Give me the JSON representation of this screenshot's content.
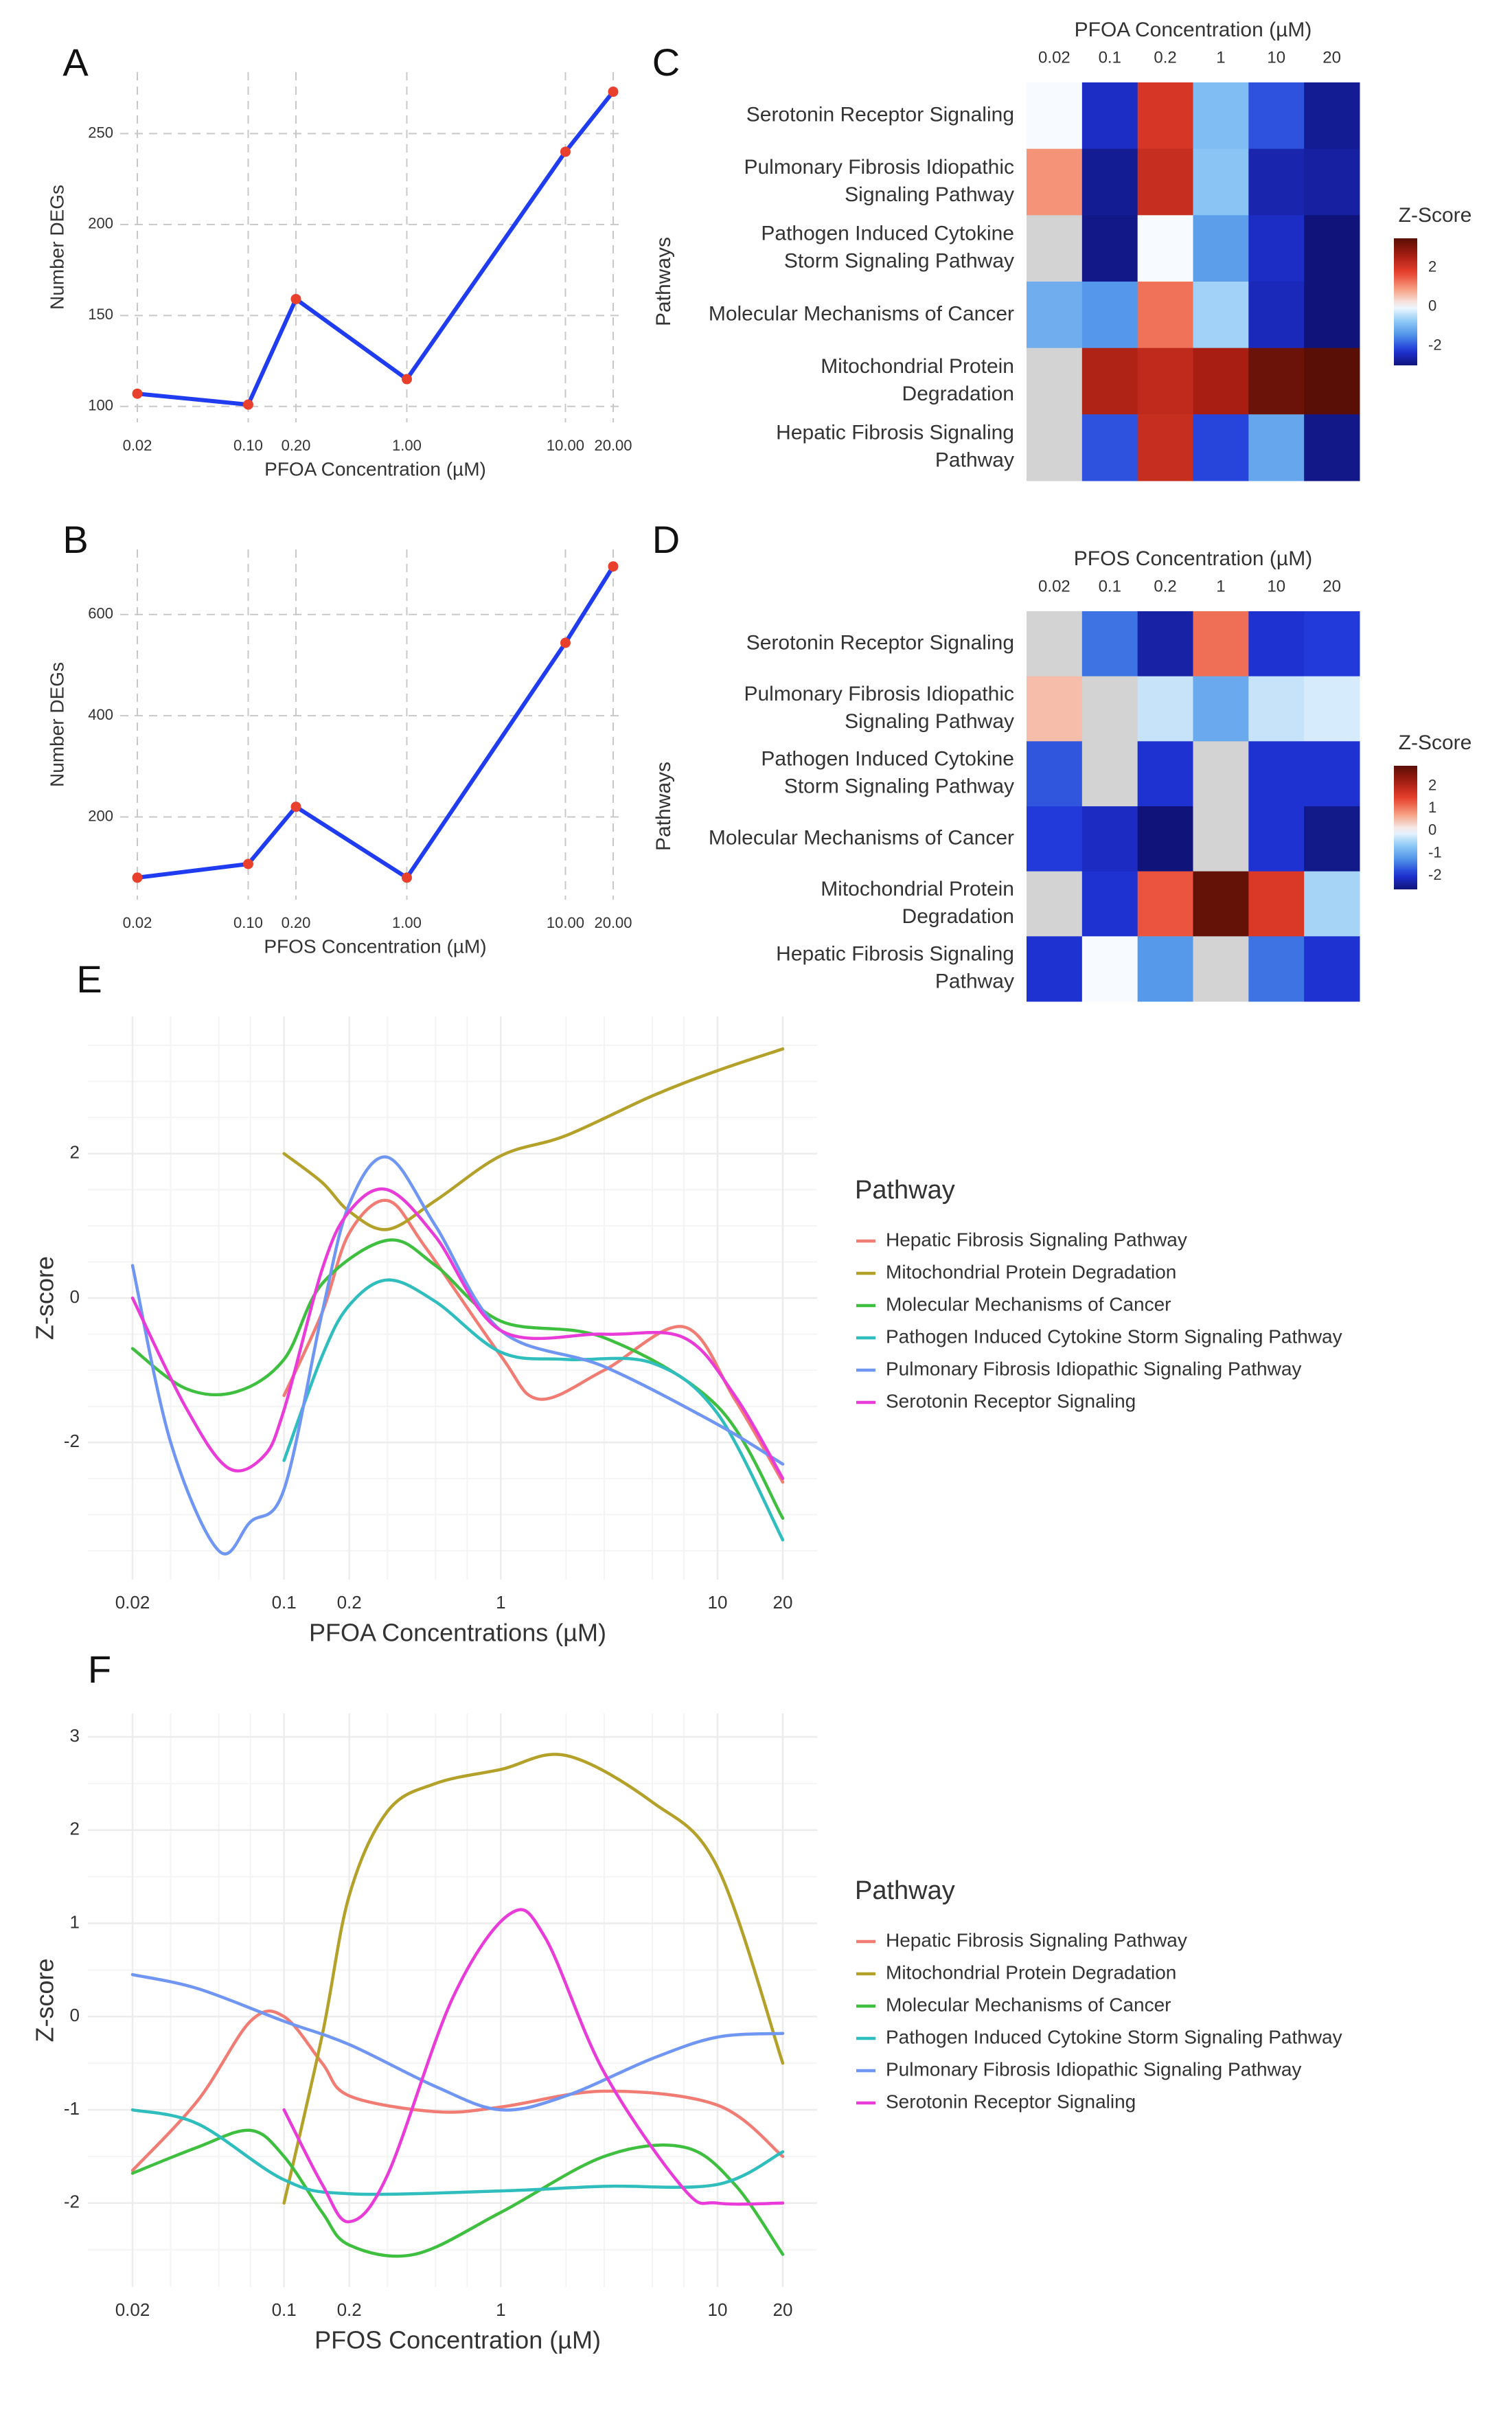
{
  "figure": {
    "panel_labels": [
      "A",
      "B",
      "C",
      "D",
      "E",
      "F"
    ],
    "colors": {
      "line_blue": "#1f3cf0",
      "point_red": "#e8402c",
      "grid_dashed": "#c8c8c8",
      "grid_light": "#ececec",
      "na_cell": "#d3d3d3",
      "text": "#333333"
    }
  },
  "chart_data": [
    {
      "panel": "A",
      "type": "line",
      "xscale": "log",
      "x": [
        0.02,
        0.1,
        0.2,
        1,
        10,
        20
      ],
      "xtick_labels": [
        "0.02",
        "0.10",
        "0.20",
        "1.00",
        "10.00",
        "20.00"
      ],
      "values": [
        107,
        101,
        159,
        115,
        240,
        273
      ],
      "xlabel": "PFOA Concentration (µM)",
      "ylabel": "Number DEGs",
      "ylim": [
        95,
        280
      ],
      "yticks": [
        100,
        150,
        200,
        250
      ]
    },
    {
      "panel": "B",
      "type": "line",
      "xscale": "log",
      "x": [
        0.02,
        0.1,
        0.2,
        1,
        10,
        20
      ],
      "xtick_labels": [
        "0.02",
        "0.10",
        "0.20",
        "1.00",
        "10.00",
        "20.00"
      ],
      "values": [
        80,
        107,
        220,
        80,
        544,
        695
      ],
      "xlabel": "PFOS Concentration (µM)",
      "ylabel": "Number DEGs",
      "ylim": [
        50,
        715
      ],
      "yticks": [
        200,
        400,
        600
      ]
    },
    {
      "panel": "C",
      "type": "heatmap",
      "title": "PFOA Concentration (µM)",
      "columns": [
        "0.02",
        "0.1",
        "0.2",
        "1",
        "10",
        "20"
      ],
      "rows": [
        "Serotonin Receptor Signaling",
        "Pulmonary Fibrosis Idiopathic Signaling Pathway",
        "Pathogen Induced Cytokine Storm Signaling Pathway",
        "Molecular Mechanisms of Cancer",
        "Mitochondrial Protein Degradation",
        "Hepatic Fibrosis Signaling Pathway"
      ],
      "row_display": [
        [
          "Serotonin Receptor Signaling"
        ],
        [
          "Pulmonary Fibrosis Idiopathic",
          "Signaling Pathway"
        ],
        [
          "Pathogen Induced Cytokine",
          "Storm Signaling Pathway"
        ],
        [
          "Molecular Mechanisms of Cancer"
        ],
        [
          "Mitochondrial Protein",
          "Degradation"
        ],
        [
          "Hepatic Fibrosis Signaling",
          "Pathway"
        ]
      ],
      "values": [
        [
          0.0,
          -2.4,
          2.0,
          -0.9,
          -2.0,
          -2.8
        ],
        [
          1.0,
          -2.8,
          2.2,
          -0.8,
          -2.6,
          -2.7
        ],
        [
          null,
          -2.9,
          0.0,
          -1.3,
          -2.4,
          -3.6
        ],
        [
          -1.1,
          -1.4,
          1.3,
          -0.6,
          -2.5,
          -3.0
        ],
        [
          null,
          2.5,
          2.3,
          2.6,
          3.3,
          3.6
        ],
        [
          null,
          -2.0,
          2.2,
          -2.1,
          -1.2,
          -2.9
        ]
      ],
      "ylabel": "Pathways",
      "legend_title": "Z-Score",
      "legend_ticks": [
        2,
        0,
        -2
      ],
      "legend_range": [
        -3,
        3.5
      ]
    },
    {
      "panel": "D",
      "type": "heatmap",
      "title": "PFOS Concentration (µM)",
      "columns": [
        "0.02",
        "0.1",
        "0.2",
        "1",
        "10",
        "20"
      ],
      "rows": [
        "Serotonin Receptor Signaling",
        "Pulmonary Fibrosis Idiopathic Signaling Pathway",
        "Pathogen Induced Cytokine Storm Signaling Pathway",
        "Molecular Mechanisms of Cancer",
        "Mitochondrial Protein Degradation",
        "Hepatic Fibrosis Signaling Pathway"
      ],
      "row_display": [
        [
          "Serotonin Receptor Signaling"
        ],
        [
          "Pulmonary Fibrosis Idiopathic",
          "Signaling Pathway"
        ],
        [
          "Pathogen Induced Cytokine",
          "Storm Signaling Pathway"
        ],
        [
          "Molecular Mechanisms of Cancer"
        ],
        [
          "Mitochondrial Protein",
          "Degradation"
        ],
        [
          "Hepatic Fibrosis Signaling",
          "Pathway"
        ]
      ],
      "values": [
        [
          null,
          -1.5,
          -2.3,
          1.1,
          -2.0,
          -1.9
        ],
        [
          0.5,
          null,
          -0.3,
          -1.0,
          -0.3,
          -0.2
        ],
        [
          -1.7,
          null,
          -2.0,
          null,
          -2.0,
          -2.0
        ],
        [
          -1.9,
          -2.1,
          -2.6,
          null,
          -2.0,
          -2.5
        ],
        [
          null,
          -2.0,
          1.3,
          2.8,
          1.6,
          -0.5
        ],
        [
          -2.0,
          0.0,
          -1.2,
          null,
          -1.5,
          -2.0
        ]
      ],
      "ylabel": "Pathways",
      "legend_title": "Z-Score",
      "legend_ticks": [
        2,
        1,
        0,
        -1,
        -2
      ],
      "legend_range": [
        -2.6,
        2.9
      ]
    },
    {
      "panel": "E",
      "type": "line",
      "xscale": "log",
      "smooth": true,
      "xticks": [
        0.02,
        0.1,
        0.2,
        1,
        10,
        20
      ],
      "xtick_labels": [
        "0.02",
        "0.1",
        "0.2",
        "1",
        "10",
        "20"
      ],
      "yticks": [
        -2,
        0,
        2
      ],
      "ylim": [
        -3.9,
        3.9
      ],
      "xlabel": "PFOA Concentrations (µM)",
      "ylabel": "Z-score",
      "legend_title": "Pathway",
      "series": [
        {
          "name": "Hepatic Fibrosis Signaling Pathway",
          "color": "#f07c73",
          "x": [
            0.1,
            0.15,
            0.2,
            0.3,
            0.45,
            1,
            1.5,
            3,
            7,
            12,
            20
          ],
          "values": [
            -1.35,
            -0.2,
            0.9,
            1.35,
            0.7,
            -0.8,
            -1.4,
            -1.0,
            -0.4,
            -1.4,
            -2.55
          ]
        },
        {
          "name": "Mitochondrial Protein Degradation",
          "color": "#b3a12a",
          "x": [
            0.1,
            0.15,
            0.2,
            0.3,
            0.5,
            1,
            2,
            5,
            10,
            20
          ],
          "values": [
            2.0,
            1.6,
            1.2,
            0.95,
            1.35,
            1.97,
            2.25,
            2.8,
            3.15,
            3.45
          ]
        },
        {
          "name": "Molecular Mechanisms of Cancer",
          "color": "#3fbf3f",
          "x": [
            0.02,
            0.035,
            0.06,
            0.1,
            0.15,
            0.3,
            0.5,
            1,
            3,
            10,
            20
          ],
          "values": [
            -0.7,
            -1.25,
            -1.3,
            -0.85,
            0.2,
            0.8,
            0.45,
            -0.32,
            -0.55,
            -1.5,
            -3.05
          ]
        },
        {
          "name": "Pathogen Induced Cytokine Storm Signaling Pathway",
          "color": "#2fbdbd",
          "x": [
            0.1,
            0.15,
            0.2,
            0.3,
            0.5,
            1,
            2,
            5,
            10,
            20
          ],
          "values": [
            -2.25,
            -0.8,
            -0.1,
            0.25,
            -0.05,
            -0.75,
            -0.85,
            -0.9,
            -1.6,
            -3.35
          ]
        },
        {
          "name": "Pulmonary Fibrosis Idiopathic Signaling Pathway",
          "color": "#6f96f3",
          "x": [
            0.02,
            0.03,
            0.05,
            0.07,
            0.1,
            0.15,
            0.2,
            0.3,
            0.5,
            1,
            3,
            10,
            20
          ],
          "values": [
            0.45,
            -2.0,
            -3.5,
            -3.1,
            -2.65,
            -0.2,
            1.3,
            1.95,
            1.0,
            -0.45,
            -0.95,
            -1.75,
            -2.3
          ]
        },
        {
          "name": "Serotonin Receptor Signaling",
          "color": "#e93bd8",
          "x": [
            0.02,
            0.035,
            0.055,
            0.08,
            0.1,
            0.15,
            0.2,
            0.3,
            0.5,
            1,
            3,
            7,
            12,
            20
          ],
          "values": [
            0.0,
            -1.5,
            -2.35,
            -2.2,
            -1.55,
            0.4,
            1.2,
            1.5,
            0.85,
            -0.45,
            -0.5,
            -0.55,
            -1.35,
            -2.5
          ]
        }
      ]
    },
    {
      "panel": "F",
      "type": "line",
      "xscale": "log",
      "smooth": true,
      "xticks": [
        0.02,
        0.1,
        0.2,
        1,
        10,
        20
      ],
      "xtick_labels": [
        "0.02",
        "0.1",
        "0.2",
        "1",
        "10",
        "20"
      ],
      "yticks": [
        -2,
        -1,
        0,
        1,
        2,
        3
      ],
      "ylim": [
        -2.9,
        3.25
      ],
      "xlabel": "PFOS Concentration (µM)",
      "ylabel": "Z-score",
      "legend_title": "Pathway",
      "series": [
        {
          "name": "Hepatic Fibrosis Signaling Pathway",
          "color": "#f07c73",
          "x": [
            0.02,
            0.04,
            0.07,
            0.1,
            0.15,
            0.2,
            0.5,
            1,
            3,
            10,
            20
          ],
          "values": [
            -1.65,
            -0.9,
            -0.05,
            0.0,
            -0.5,
            -0.85,
            -1.02,
            -0.97,
            -0.8,
            -0.95,
            -1.5
          ]
        },
        {
          "name": "Mitochondrial Protein Degradation",
          "color": "#b3a12a",
          "x": [
            0.1,
            0.15,
            0.2,
            0.3,
            0.5,
            1,
            2,
            5,
            10,
            20
          ],
          "values": [
            -2.0,
            -0.2,
            1.3,
            2.2,
            2.5,
            2.65,
            2.8,
            2.3,
            1.6,
            -0.5
          ]
        },
        {
          "name": "Molecular Mechanisms of Cancer",
          "color": "#3fbf3f",
          "x": [
            0.02,
            0.04,
            0.07,
            0.1,
            0.15,
            0.2,
            0.4,
            1,
            3,
            7,
            12,
            20
          ],
          "values": [
            -1.68,
            -1.4,
            -1.22,
            -1.5,
            -2.1,
            -2.45,
            -2.55,
            -2.1,
            -1.5,
            -1.4,
            -1.8,
            -2.55
          ]
        },
        {
          "name": "Pathogen Induced Cytokine Storm Signaling Pathway",
          "color": "#2fbdbd",
          "x": [
            0.02,
            0.04,
            0.1,
            0.2,
            1,
            3,
            10,
            20
          ],
          "values": [
            -1.0,
            -1.15,
            -1.75,
            -1.9,
            -1.87,
            -1.82,
            -1.8,
            -1.45
          ]
        },
        {
          "name": "Pulmonary Fibrosis Idiopathic Signaling Pathway",
          "color": "#6f96f3",
          "x": [
            0.02,
            0.04,
            0.1,
            0.2,
            0.5,
            1,
            2,
            5,
            10,
            20
          ],
          "values": [
            0.45,
            0.3,
            -0.05,
            -0.3,
            -0.75,
            -1.0,
            -0.85,
            -0.45,
            -0.22,
            -0.18
          ]
        },
        {
          "name": "Serotonin Receptor Signaling",
          "color": "#e93bd8",
          "x": [
            0.1,
            0.15,
            0.2,
            0.3,
            0.6,
            1.1,
            1.6,
            3,
            7,
            10,
            20
          ],
          "values": [
            -1.0,
            -1.8,
            -2.2,
            -1.7,
            0.2,
            1.1,
            0.85,
            -0.6,
            -1.85,
            -2.0,
            -2.0
          ]
        }
      ]
    }
  ]
}
